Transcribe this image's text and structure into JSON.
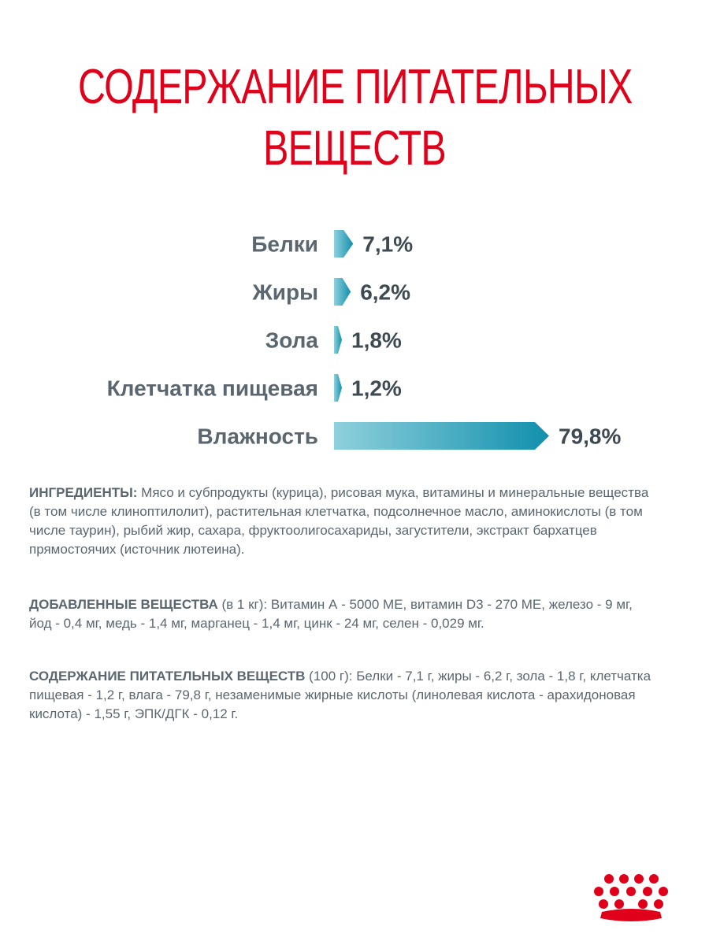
{
  "title": {
    "line1": "СОДЕРЖАНИЕ ПИТАТЕЛЬНЫХ",
    "line2": "ВЕЩЕСТВ"
  },
  "chart_data": {
    "type": "bar",
    "orientation": "horizontal",
    "categories": [
      "Белки",
      "Жиры",
      "Зола",
      "Клетчатка пищевая",
      "Влажность"
    ],
    "values": [
      7.1,
      6.2,
      1.8,
      1.2,
      79.8
    ],
    "value_labels": [
      "7,1%",
      "6,2%",
      "1,8%",
      "1,2%",
      "79,8%"
    ],
    "bar_color_start": "#8fd0dc",
    "bar_color_end": "#1190ad",
    "label_color": "#5b6770",
    "value_color": "#3e4a52",
    "title": "",
    "xlabel": "",
    "ylabel": ""
  },
  "ingredients": {
    "heading": "ИНГРЕДИЕНТЫ:",
    "text": " Мясо и субпродукты (курица), рисовая мука, витамины и минеральные вещества (в том числе клиноптилолит), растительная клетчатка, подсолнечное масло, аминокислоты (в том числе таурин), рыбий жир, сахара, фруктоолигосахариды, загустители, экстракт бархатцев прямостоячих (источник лютеина)."
  },
  "additives": {
    "heading": "ДОБАВЛЕННЫЕ ВЕЩЕСТВА",
    "text": "  (в 1 кг): Витамин А - 5000 МЕ, витамин D3 - 270 МЕ, железо - 9 мг, йод - 0,4 мг, медь - 1,4 мг, марганец - 1,4 мг, цинк - 24 мг, селен - 0,029 мг."
  },
  "nutrients": {
    "heading": "СОДЕРЖАНИЕ ПИТАТЕЛЬНЫХ ВЕЩЕСТВ",
    "text": " (100 г): Белки - 7,1 г, жиры - 6,2 г, зола - 1,8 г, клетчатка пищевая - 1,2 г, влага - 79,8 г, незаменимые жирные кислоты (линолевая кислота - арахидоновая кислота) - 1,55 г, ЭПК/ДГК - 0,12 г."
  },
  "logo": {
    "name": "royal-canin-crown-icon",
    "color": "#e1001a"
  }
}
